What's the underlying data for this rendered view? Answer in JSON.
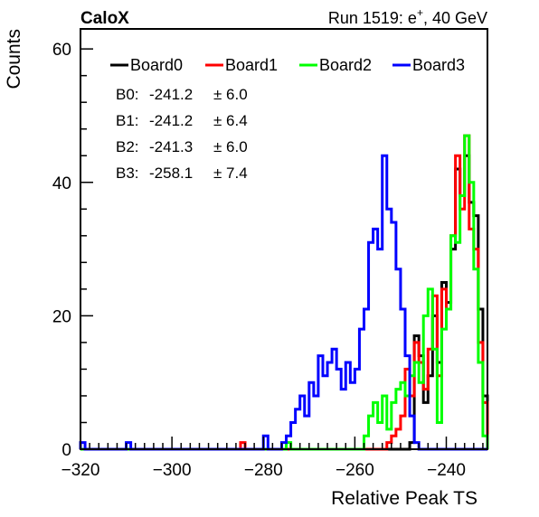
{
  "chart_data": {
    "type": "histogram",
    "xlabel": "Relative Peak TS",
    "ylabel": "Counts",
    "corner_left": "CaloX",
    "corner_right_prefix": "Run 1519: e",
    "corner_right_sup": "+",
    "corner_right_suffix": ", 40 GeV",
    "xlim": [
      -320,
      -231
    ],
    "ylim": [
      0,
      63
    ],
    "x_ticks": [
      -320,
      -300,
      -280,
      -260,
      -240
    ],
    "y_ticks": [
      0,
      20,
      40,
      60
    ],
    "bin_width": 1,
    "legend_position": "top",
    "series": [
      {
        "name": "Board0",
        "color": "#000000",
        "counts": {
          "-248": 1,
          "-247": 17,
          "-246": 14,
          "-245": 7,
          "-244": 11,
          "-243": 20,
          "-242": 13,
          "-241": 25,
          "-240": 22,
          "-239": 30,
          "-238": 42,
          "-237": 38,
          "-236": 44,
          "-235": 37,
          "-234": 35,
          "-233": 21,
          "-232": 8,
          "-231": 3
        }
      },
      {
        "name": "Board1",
        "color": "#ff0000",
        "counts": {
          "-285": 1,
          "-253": 1,
          "-252": 2,
          "-251": 3,
          "-250": 5,
          "-249": 12,
          "-248": 8,
          "-247": 16,
          "-246": 13,
          "-245": 9,
          "-244": 15,
          "-243": 23,
          "-242": 11,
          "-241": 24,
          "-240": 21,
          "-239": 32,
          "-238": 44,
          "-237": 36,
          "-236": 47,
          "-235": 33,
          "-234": 30,
          "-233": 16,
          "-232": 7,
          "-231": 3
        }
      },
      {
        "name": "Board2",
        "color": "#00ff00",
        "counts": {
          "-275": 1,
          "-258": 2,
          "-257": 5,
          "-256": 7,
          "-255": 4,
          "-254": 8,
          "-253": 3,
          "-252": 7,
          "-251": 9,
          "-250": 10,
          "-249": 8,
          "-248": 11,
          "-247": 13,
          "-246": 10,
          "-245": 20,
          "-244": 24,
          "-243": 15,
          "-242": 4,
          "-241": 18,
          "-240": 21,
          "-239": 32,
          "-238": 31,
          "-237": 38,
          "-236": 47,
          "-235": 40,
          "-234": 27,
          "-233": 13,
          "-232": 2
        }
      },
      {
        "name": "Board3",
        "color": "#0000ff",
        "counts": {
          "-320": 1,
          "-310": 1,
          "-280": 2,
          "-276": 1,
          "-275": 2,
          "-274": 4,
          "-273": 6,
          "-272": 8,
          "-271": 5,
          "-270": 10,
          "-269": 8,
          "-268": 14,
          "-267": 11,
          "-266": 13,
          "-265": 15,
          "-264": 12,
          "-263": 9,
          "-262": 13,
          "-261": 10,
          "-260": 12,
          "-259": 18,
          "-258": 21,
          "-257": 31,
          "-256": 33,
          "-255": 30,
          "-254": 44,
          "-253": 36,
          "-252": 34,
          "-251": 27,
          "-250": 21,
          "-249": 14,
          "-248": 5,
          "-247": 1
        }
      }
    ],
    "stats": [
      {
        "label": "B0:",
        "mean": "-241.2",
        "pm": "± 6.0"
      },
      {
        "label": "B1:",
        "mean": "-241.2",
        "pm": "± 6.4"
      },
      {
        "label": "B2:",
        "mean": "-241.3",
        "pm": "± 6.0"
      },
      {
        "label": "B3:",
        "mean": "-258.1",
        "pm": "± 7.4"
      }
    ]
  }
}
